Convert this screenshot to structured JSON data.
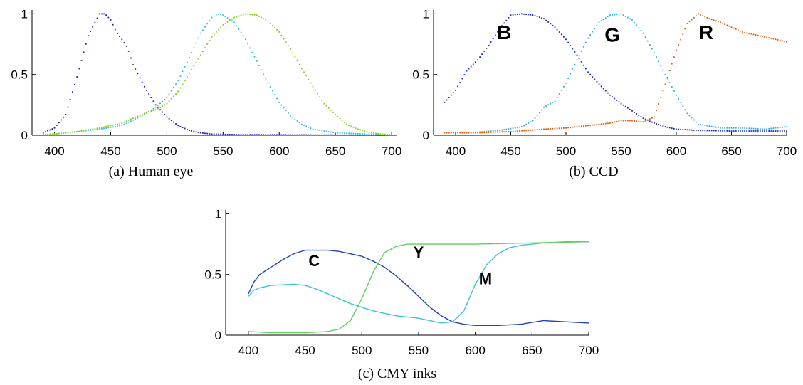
{
  "chart_data": [
    {
      "id": "a",
      "type": "scatter",
      "caption": "(a) Human eye",
      "xlim": [
        380,
        705
      ],
      "ylim": [
        0,
        1.02
      ],
      "xticks": [
        400,
        450,
        500,
        550,
        600,
        650,
        700
      ],
      "yticks": [
        0,
        0.5,
        1
      ],
      "yticklabels": [
        "0",
        "0.5",
        "1"
      ],
      "grid": false,
      "annotations": [],
      "series": [
        {
          "color": "#2020c0",
          "points": [
            [
              390,
              0.02
            ],
            [
              400,
              0.06
            ],
            [
              410,
              0.17
            ],
            [
              420,
              0.48
            ],
            [
              430,
              0.82
            ],
            [
              440,
              1.0
            ],
            [
              445,
              1.0
            ],
            [
              450,
              0.95
            ],
            [
              455,
              0.85
            ],
            [
              460,
              0.79
            ],
            [
              465,
              0.72
            ],
            [
              470,
              0.58
            ],
            [
              480,
              0.4
            ],
            [
              490,
              0.25
            ],
            [
              500,
              0.15
            ],
            [
              510,
              0.08
            ],
            [
              520,
              0.04
            ],
            [
              530,
              0.02
            ],
            [
              540,
              0.01
            ],
            [
              560,
              0.005
            ],
            [
              700,
              0.0
            ]
          ]
        },
        {
          "color": "#30c0e0",
          "points": [
            [
              390,
              0.005
            ],
            [
              400,
              0.01
            ],
            [
              420,
              0.03
            ],
            [
              440,
              0.05
            ],
            [
              460,
              0.08
            ],
            [
              480,
              0.17
            ],
            [
              490,
              0.23
            ],
            [
              500,
              0.31
            ],
            [
              510,
              0.45
            ],
            [
              520,
              0.64
            ],
            [
              530,
              0.84
            ],
            [
              540,
              0.97
            ],
            [
              545,
              1.0
            ],
            [
              550,
              0.99
            ],
            [
              560,
              0.93
            ],
            [
              570,
              0.79
            ],
            [
              580,
              0.61
            ],
            [
              590,
              0.43
            ],
            [
              600,
              0.27
            ],
            [
              610,
              0.16
            ],
            [
              620,
              0.09
            ],
            [
              630,
              0.05
            ],
            [
              650,
              0.02
            ],
            [
              700,
              0.002
            ]
          ]
        },
        {
          "color": "#80d020",
          "points": [
            [
              390,
              0.005
            ],
            [
              400,
              0.01
            ],
            [
              420,
              0.03
            ],
            [
              440,
              0.06
            ],
            [
              460,
              0.1
            ],
            [
              480,
              0.18
            ],
            [
              490,
              0.21
            ],
            [
              500,
              0.26
            ],
            [
              510,
              0.36
            ],
            [
              520,
              0.51
            ],
            [
              530,
              0.66
            ],
            [
              540,
              0.81
            ],
            [
              550,
              0.91
            ],
            [
              560,
              0.97
            ],
            [
              570,
              1.0
            ],
            [
              580,
              0.99
            ],
            [
              590,
              0.94
            ],
            [
              600,
              0.85
            ],
            [
              610,
              0.71
            ],
            [
              620,
              0.55
            ],
            [
              630,
              0.4
            ],
            [
              640,
              0.26
            ],
            [
              650,
              0.17
            ],
            [
              660,
              0.09
            ],
            [
              670,
              0.05
            ],
            [
              680,
              0.025
            ],
            [
              690,
              0.01
            ],
            [
              700,
              0.005
            ]
          ]
        }
      ]
    },
    {
      "id": "b",
      "type": "scatter",
      "caption": "(b) CCD",
      "xlim": [
        380,
        700
      ],
      "ylim": [
        0,
        1.02
      ],
      "xticks": [
        400,
        450,
        500,
        550,
        600,
        650,
        700
      ],
      "yticks": [
        0,
        0.5,
        1
      ],
      "yticklabels": [
        "0",
        "0.5",
        "1"
      ],
      "grid": false,
      "annotations": [
        {
          "text": "B",
          "x": 444,
          "y": 0.79
        },
        {
          "text": "G",
          "x": 542,
          "y": 0.77
        },
        {
          "text": "R",
          "x": 627,
          "y": 0.79
        }
      ],
      "series": [
        {
          "color": "#2030c0",
          "points": [
            [
              390,
              0.27
            ],
            [
              400,
              0.37
            ],
            [
              410,
              0.53
            ],
            [
              420,
              0.62
            ],
            [
              430,
              0.74
            ],
            [
              440,
              0.88
            ],
            [
              450,
              0.99
            ],
            [
              460,
              1.0
            ],
            [
              470,
              0.99
            ],
            [
              480,
              0.96
            ],
            [
              490,
              0.89
            ],
            [
              500,
              0.79
            ],
            [
              510,
              0.66
            ],
            [
              520,
              0.52
            ],
            [
              530,
              0.42
            ],
            [
              540,
              0.33
            ],
            [
              550,
              0.26
            ],
            [
              560,
              0.2
            ],
            [
              570,
              0.14
            ],
            [
              580,
              0.1
            ],
            [
              590,
              0.07
            ],
            [
              600,
              0.05
            ],
            [
              620,
              0.04
            ],
            [
              650,
              0.035
            ],
            [
              700,
              0.035
            ]
          ]
        },
        {
          "color": "#30b0e0",
          "points": [
            [
              390,
              0.02
            ],
            [
              420,
              0.025
            ],
            [
              440,
              0.04
            ],
            [
              460,
              0.07
            ],
            [
              470,
              0.12
            ],
            [
              480,
              0.23
            ],
            [
              490,
              0.28
            ],
            [
              500,
              0.43
            ],
            [
              510,
              0.62
            ],
            [
              520,
              0.8
            ],
            [
              530,
              0.93
            ],
            [
              540,
              0.99
            ],
            [
              550,
              1.0
            ],
            [
              560,
              0.95
            ],
            [
              570,
              0.84
            ],
            [
              580,
              0.68
            ],
            [
              590,
              0.5
            ],
            [
              600,
              0.33
            ],
            [
              610,
              0.18
            ],
            [
              620,
              0.09
            ],
            [
              640,
              0.06
            ],
            [
              660,
              0.06
            ],
            [
              680,
              0.05
            ],
            [
              700,
              0.07
            ]
          ]
        },
        {
          "color": "#e06010",
          "points": [
            [
              390,
              0.02
            ],
            [
              420,
              0.02
            ],
            [
              450,
              0.03
            ],
            [
              480,
              0.05
            ],
            [
              500,
              0.06
            ],
            [
              520,
              0.08
            ],
            [
              540,
              0.1
            ],
            [
              550,
              0.12
            ],
            [
              560,
              0.12
            ],
            [
              570,
              0.11
            ],
            [
              580,
              0.15
            ],
            [
              590,
              0.42
            ],
            [
              600,
              0.7
            ],
            [
              610,
              0.92
            ],
            [
              620,
              1.0
            ],
            [
              630,
              0.96
            ],
            [
              640,
              0.93
            ],
            [
              650,
              0.89
            ],
            [
              660,
              0.85
            ],
            [
              680,
              0.81
            ],
            [
              700,
              0.77
            ]
          ]
        }
      ]
    },
    {
      "id": "c",
      "type": "line",
      "caption": "(c) CMY inks",
      "xlim": [
        380,
        700
      ],
      "ylim": [
        0,
        1.02
      ],
      "xticks": [
        400,
        450,
        500,
        550,
        600,
        650,
        700
      ],
      "yticks": [
        0,
        0.5,
        1
      ],
      "yticklabels": [
        "0",
        "0.5",
        "1"
      ],
      "grid": false,
      "annotations": [
        {
          "text": "C",
          "x": 458,
          "y": 0.57
        },
        {
          "text": "Y",
          "x": 550,
          "y": 0.64
        },
        {
          "text": "M",
          "x": 609,
          "y": 0.42
        }
      ],
      "series": [
        {
          "color": "#2040c0",
          "points": [
            [
              400,
              0.34
            ],
            [
              405,
              0.44
            ],
            [
              410,
              0.5
            ],
            [
              420,
              0.56
            ],
            [
              430,
              0.62
            ],
            [
              440,
              0.67
            ],
            [
              450,
              0.7
            ],
            [
              460,
              0.7
            ],
            [
              470,
              0.7
            ],
            [
              480,
              0.69
            ],
            [
              490,
              0.67
            ],
            [
              500,
              0.65
            ],
            [
              510,
              0.61
            ],
            [
              520,
              0.56
            ],
            [
              530,
              0.49
            ],
            [
              540,
              0.41
            ],
            [
              550,
              0.32
            ],
            [
              560,
              0.23
            ],
            [
              570,
              0.16
            ],
            [
              580,
              0.11
            ],
            [
              590,
              0.09
            ],
            [
              600,
              0.08
            ],
            [
              620,
              0.08
            ],
            [
              640,
              0.09
            ],
            [
              660,
              0.12
            ],
            [
              680,
              0.11
            ],
            [
              700,
              0.1
            ]
          ]
        },
        {
          "color": "#40c0e0",
          "points": [
            [
              400,
              0.32
            ],
            [
              405,
              0.37
            ],
            [
              410,
              0.39
            ],
            [
              420,
              0.41
            ],
            [
              440,
              0.42
            ],
            [
              450,
              0.41
            ],
            [
              460,
              0.38
            ],
            [
              470,
              0.34
            ],
            [
              480,
              0.3
            ],
            [
              490,
              0.26
            ],
            [
              500,
              0.23
            ],
            [
              510,
              0.2
            ],
            [
              520,
              0.18
            ],
            [
              530,
              0.16
            ],
            [
              540,
              0.15
            ],
            [
              550,
              0.14
            ],
            [
              560,
              0.12
            ],
            [
              570,
              0.1
            ],
            [
              580,
              0.11
            ],
            [
              590,
              0.2
            ],
            [
              600,
              0.42
            ],
            [
              610,
              0.58
            ],
            [
              620,
              0.67
            ],
            [
              630,
              0.72
            ],
            [
              640,
              0.74
            ],
            [
              660,
              0.76
            ],
            [
              680,
              0.77
            ],
            [
              700,
              0.77
            ]
          ]
        },
        {
          "color": "#60d060",
          "points": [
            [
              400,
              0.03
            ],
            [
              420,
              0.02
            ],
            [
              450,
              0.02
            ],
            [
              470,
              0.03
            ],
            [
              480,
              0.05
            ],
            [
              490,
              0.12
            ],
            [
              500,
              0.3
            ],
            [
              510,
              0.52
            ],
            [
              520,
              0.68
            ],
            [
              530,
              0.73
            ],
            [
              540,
              0.75
            ],
            [
              560,
              0.75
            ],
            [
              600,
              0.75
            ],
            [
              650,
              0.76
            ],
            [
              700,
              0.77
            ]
          ]
        }
      ]
    }
  ]
}
